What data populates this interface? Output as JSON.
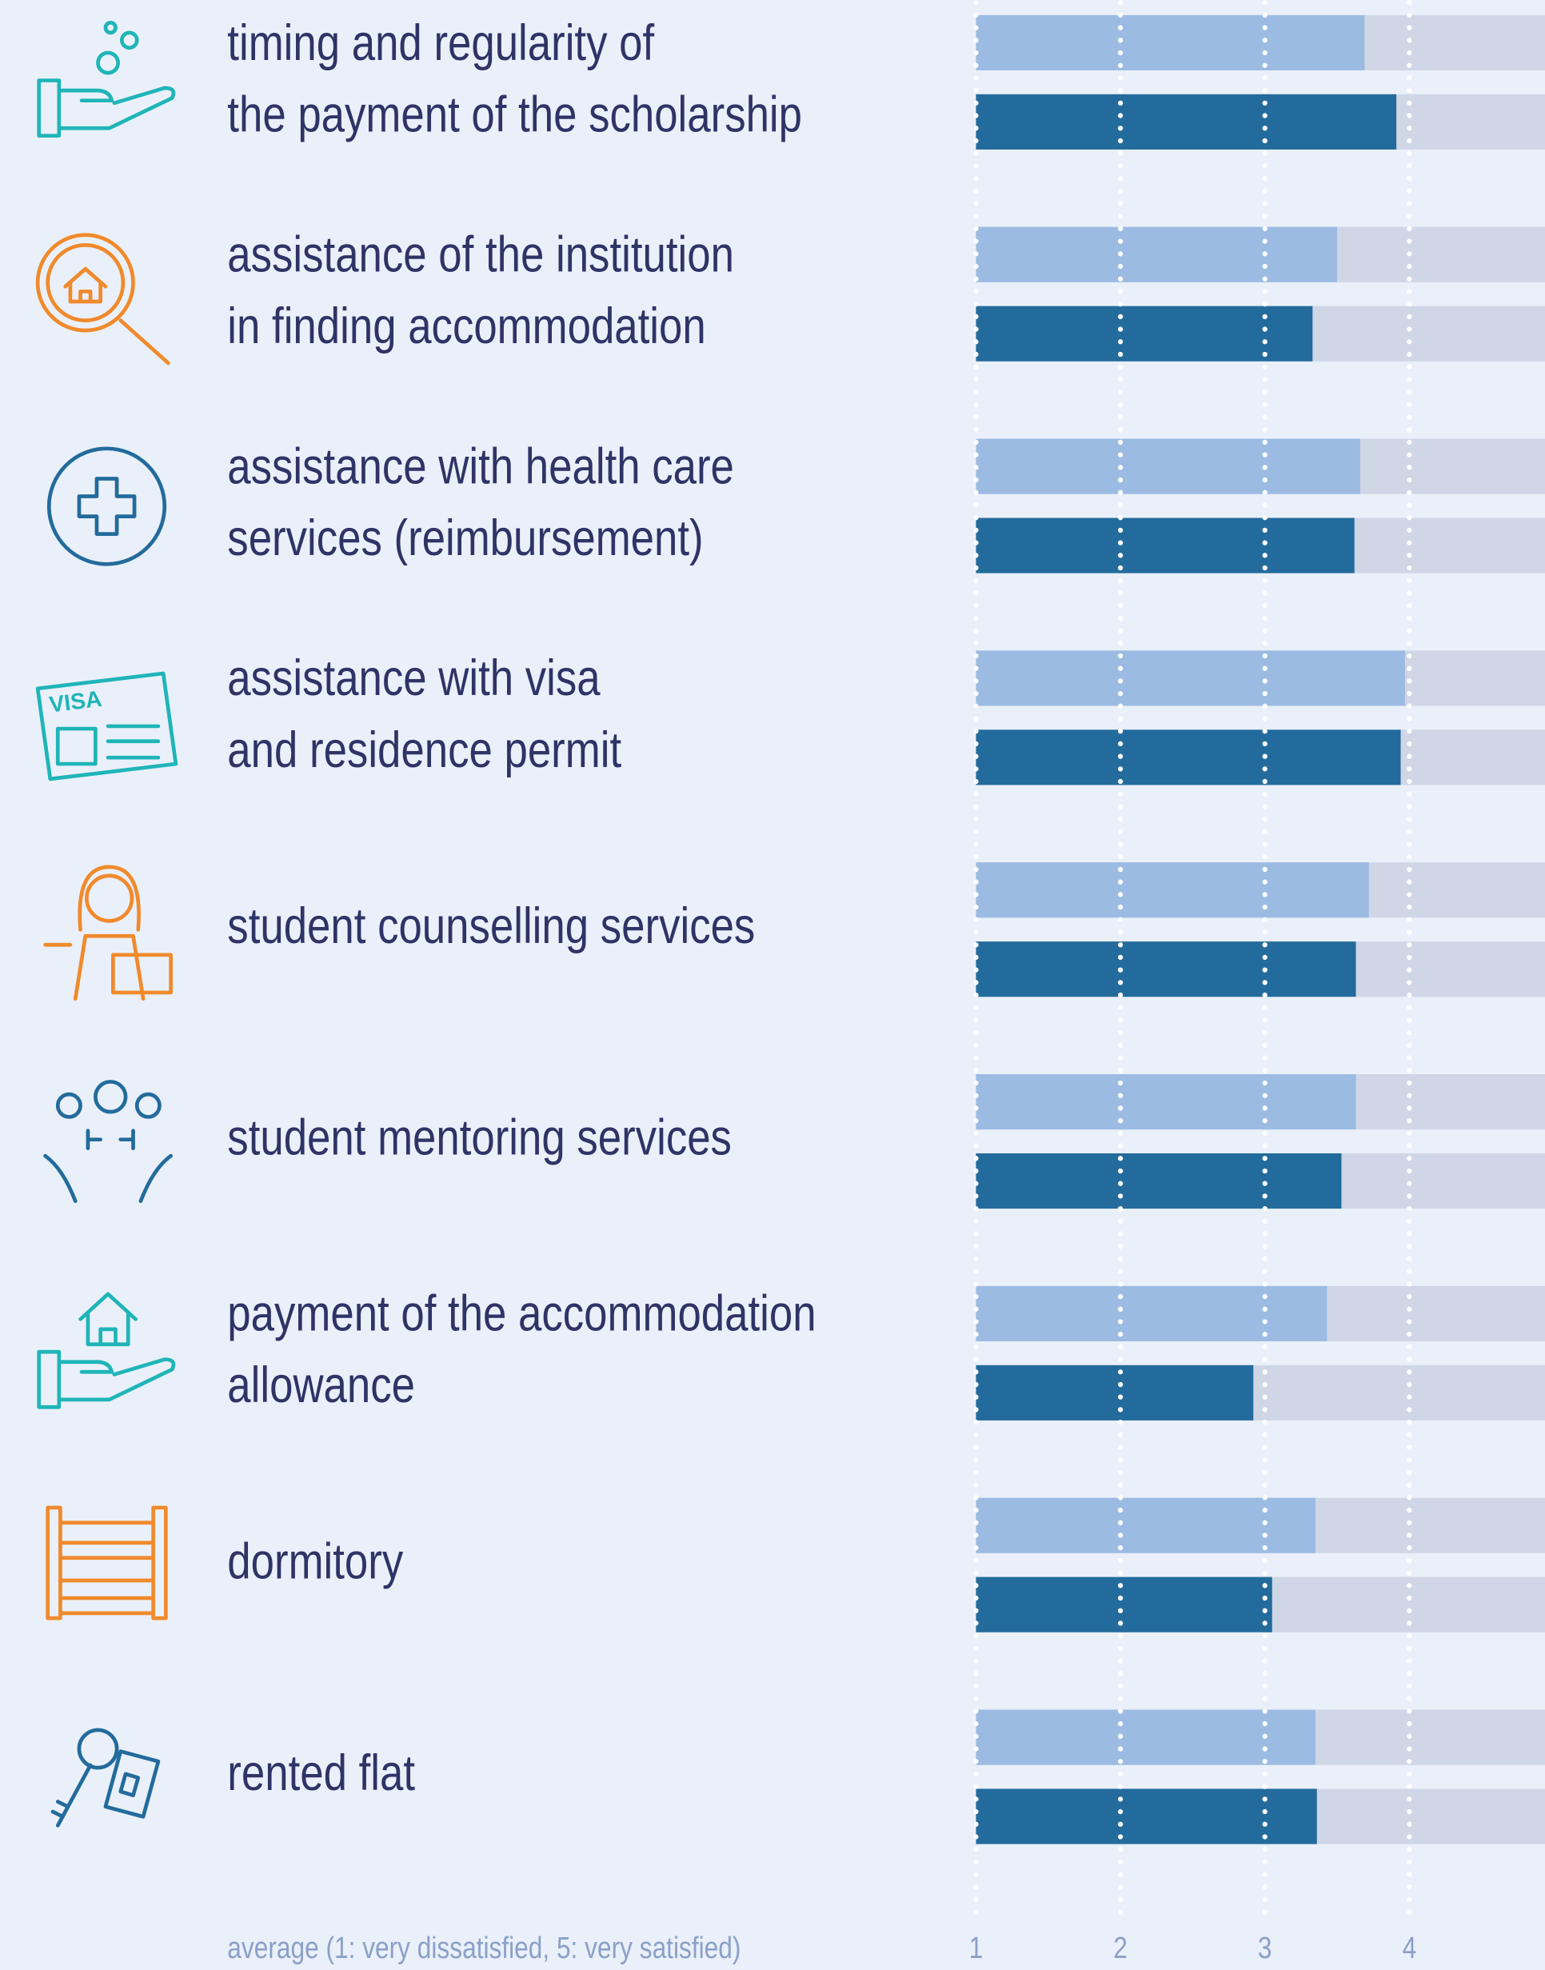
{
  "chart_data": {
    "type": "bar",
    "orientation": "horizontal",
    "categories": [
      [
        "timing and regularity of",
        "the payment of the scholarship"
      ],
      [
        "assistance of the institution",
        "in finding accommodation"
      ],
      [
        "assistance with health care",
        "services (reimbursement)"
      ],
      [
        "assistance with visa",
        "and residence permit"
      ],
      [
        "student counselling services"
      ],
      [
        "student mentoring services"
      ],
      [
        "payment of the accommodation",
        "allowance"
      ],
      [
        "dormitory"
      ],
      [
        "rented flat"
      ]
    ],
    "series": [
      {
        "color": "#9bbbe3",
        "values": [
          3.69,
          3.5,
          3.66,
          3.97,
          3.72,
          3.63,
          3.43,
          3.35,
          3.35
        ]
      },
      {
        "color": "#236b9c",
        "values": [
          3.91,
          3.33,
          3.62,
          3.94,
          3.63,
          3.53,
          2.92,
          3.05,
          3.36
        ]
      }
    ],
    "track_color": "#cfd6e5",
    "xlim": [
      1,
      5
    ],
    "xticks": [
      1,
      2,
      3,
      4
    ],
    "grid": true,
    "xlabel": "average (1: very dissatisfied, 5: very satisfied)"
  }
}
